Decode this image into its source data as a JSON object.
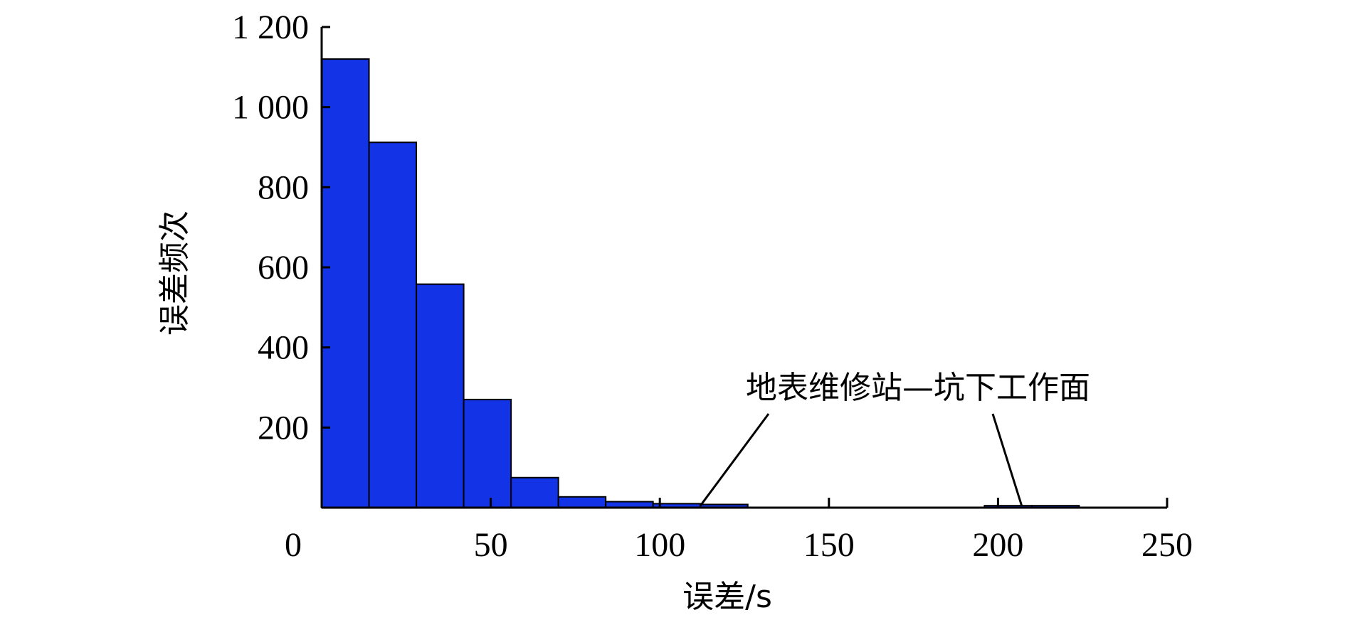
{
  "chart_data": {
    "type": "bar",
    "bins": [
      {
        "x0": 0,
        "x1": 14,
        "value": 1120
      },
      {
        "x0": 14,
        "x1": 28,
        "value": 912
      },
      {
        "x0": 28,
        "x1": 42,
        "value": 558
      },
      {
        "x0": 42,
        "x1": 56,
        "value": 270
      },
      {
        "x0": 56,
        "x1": 70,
        "value": 75
      },
      {
        "x0": 70,
        "x1": 84,
        "value": 27
      },
      {
        "x0": 84,
        "x1": 98,
        "value": 15
      },
      {
        "x0": 98,
        "x1": 112,
        "value": 10
      },
      {
        "x0": 112,
        "x1": 126,
        "value": 8
      },
      {
        "x0": 126,
        "x1": 140,
        "value": 0
      },
      {
        "x0": 140,
        "x1": 154,
        "value": 0
      },
      {
        "x0": 154,
        "x1": 168,
        "value": 0
      },
      {
        "x0": 168,
        "x1": 182,
        "value": 0
      },
      {
        "x0": 182,
        "x1": 196,
        "value": 0
      },
      {
        "x0": 196,
        "x1": 210,
        "value": 5
      },
      {
        "x0": 210,
        "x1": 224,
        "value": 5
      }
    ],
    "xlabel": "误差/s",
    "ylabel": "误差频次",
    "xlim": [
      0,
      250
    ],
    "ylim": [
      0,
      1200
    ],
    "xticks": [
      0,
      50,
      100,
      150,
      200,
      250
    ],
    "xtick_labels": [
      "0",
      "50",
      "100",
      "150",
      "200",
      "250"
    ],
    "yticks": [
      200,
      400,
      600,
      800,
      1000,
      1200
    ],
    "ytick_labels": [
      "200",
      "400",
      "600",
      "800",
      "1 000",
      "1 200"
    ],
    "grid": false,
    "annotation": {
      "text": "地表维修站—坑下工作面",
      "targets": [
        {
          "x": 112,
          "y": 5
        },
        {
          "x": 207,
          "y": 5
        }
      ]
    },
    "bar_color": "#1233e6"
  }
}
